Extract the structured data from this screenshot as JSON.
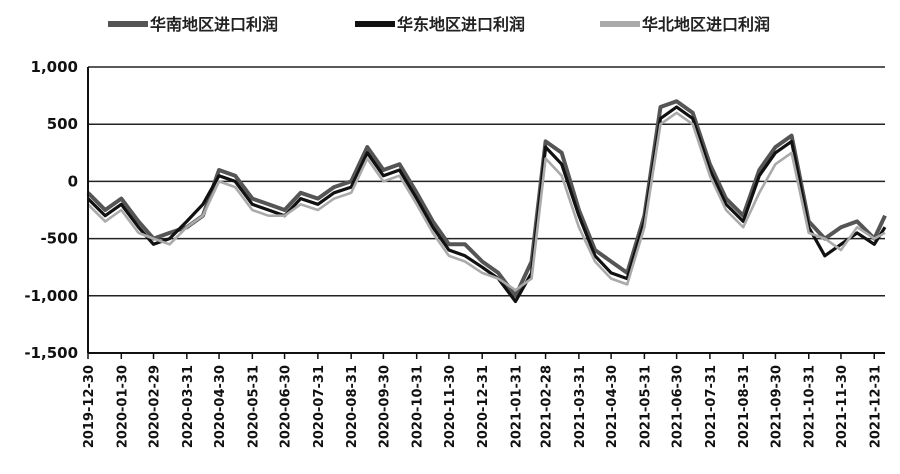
{
  "chart_data": {
    "type": "line",
    "title": "",
    "xlabel": "",
    "ylabel": "",
    "ylim": [
      -1500,
      1000
    ],
    "yticks": [
      1000,
      500,
      0,
      -500,
      -1000,
      -1500
    ],
    "ytick_labels": [
      "1,000",
      "500",
      "0",
      "-500",
      "-1,000",
      "-1,500"
    ],
    "grid": "horizontal",
    "legend_position": "top",
    "x_ticks": [
      "2019-12-30",
      "2020-01-30",
      "2020-02-29",
      "2020-03-31",
      "2020-04-30",
      "2020-05-31",
      "2020-06-30",
      "2020-07-31",
      "2020-08-31",
      "2020-09-30",
      "2020-10-31",
      "2020-11-30",
      "2020-12-31",
      "2021-01-31",
      "2021-02-28",
      "2021-03-31",
      "2021-04-30",
      "2021-05-31",
      "2021-06-30",
      "2021-07-31",
      "2021-08-31",
      "2021-09-30",
      "2021-10-31",
      "2021-11-30",
      "2021-12-31"
    ],
    "x": [
      "2019-12-30",
      "2020-01-15",
      "2020-01-30",
      "2020-02-15",
      "2020-02-29",
      "2020-03-15",
      "2020-03-31",
      "2020-04-15",
      "2020-04-30",
      "2020-05-15",
      "2020-05-31",
      "2020-06-15",
      "2020-06-30",
      "2020-07-15",
      "2020-07-31",
      "2020-08-15",
      "2020-08-31",
      "2020-09-15",
      "2020-09-30",
      "2020-10-15",
      "2020-10-31",
      "2020-11-15",
      "2020-11-30",
      "2020-12-15",
      "2020-12-31",
      "2021-01-15",
      "2021-01-31",
      "2021-02-15",
      "2021-02-28",
      "2021-03-15",
      "2021-03-31",
      "2021-04-15",
      "2021-04-30",
      "2021-05-15",
      "2021-05-31",
      "2021-06-15",
      "2021-06-30",
      "2021-07-15",
      "2021-07-31",
      "2021-08-15",
      "2021-08-31",
      "2021-09-15",
      "2021-09-30",
      "2021-10-15",
      "2021-10-31",
      "2021-11-15",
      "2021-11-30",
      "2021-12-15",
      "2021-12-31",
      "2022-01-10"
    ],
    "series": [
      {
        "name": "华南地区进口利润",
        "color": "#555555",
        "values": [
          -100,
          -250,
          -150,
          -350,
          -500,
          -450,
          -400,
          -300,
          100,
          50,
          -150,
          -200,
          -250,
          -100,
          -150,
          -50,
          0,
          300,
          100,
          150,
          -100,
          -350,
          -550,
          -550,
          -700,
          -800,
          -1000,
          -700,
          350,
          250,
          -250,
          -600,
          -700,
          -800,
          -300,
          650,
          700,
          600,
          150,
          -150,
          -300,
          100,
          300,
          400,
          -350,
          -500,
          -400,
          -350,
          -500,
          -300
        ]
      },
      {
        "name": "华东地区进口利润",
        "color": "#111111",
        "values": [
          -150,
          -300,
          -200,
          -400,
          -550,
          -500,
          -350,
          -200,
          50,
          0,
          -200,
          -250,
          -300,
          -150,
          -200,
          -100,
          -50,
          250,
          50,
          100,
          -150,
          -400,
          -600,
          -650,
          -750,
          -850,
          -1050,
          -800,
          300,
          150,
          -300,
          -650,
          -800,
          -850,
          -350,
          550,
          650,
          550,
          100,
          -200,
          -350,
          50,
          250,
          350,
          -400,
          -650,
          -550,
          -450,
          -550,
          -400
        ]
      },
      {
        "name": "华北地区进口利润",
        "color": "#aaaaaa",
        "values": [
          -200,
          -350,
          -250,
          -450,
          -500,
          -550,
          -400,
          -300,
          0,
          -50,
          -250,
          -300,
          -300,
          -200,
          -250,
          -150,
          -100,
          200,
          0,
          50,
          -200,
          -450,
          -650,
          -700,
          -800,
          -850,
          -950,
          -850,
          200,
          50,
          -400,
          -700,
          -850,
          -900,
          -400,
          500,
          600,
          500,
          50,
          -250,
          -400,
          -100,
          150,
          250,
          -450,
          -500,
          -600,
          -400,
          -500,
          -450
        ]
      }
    ]
  }
}
